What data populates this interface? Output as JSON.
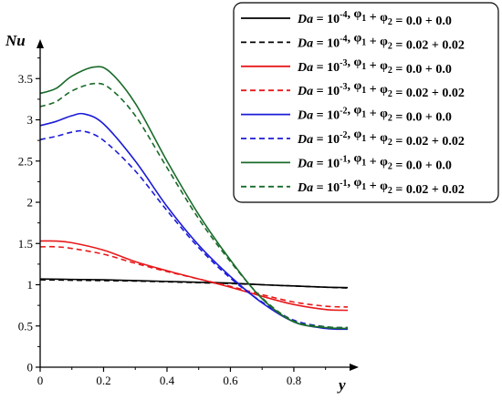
{
  "chart_data": {
    "type": "line",
    "title": "",
    "xlabel": "y",
    "ylabel": "Nu",
    "xlim": [
      0,
      0.97
    ],
    "ylim": [
      0,
      4
    ],
    "xticks": [
      "0",
      "0.2",
      "0.4",
      "0.6",
      "0.8"
    ],
    "xtick_values": [
      0,
      0.2,
      0.4,
      0.6,
      0.8
    ],
    "yticks": [
      "0",
      "0.5",
      "1",
      "1.5",
      "2",
      "2.5",
      "3",
      "3.5"
    ],
    "ytick_values": [
      0,
      0.5,
      1,
      1.5,
      2,
      2.5,
      3,
      3.5
    ],
    "grid": false,
    "legend_position": "top-right",
    "series": [
      {
        "name": "Da = 10^-4, φ1 + φ2 = 0.0 + 0.0",
        "legend": {
          "da_label": "Da",
          "da_exp": "-4",
          "phi_values": "0.0 + 0.0"
        },
        "color": "#000000",
        "dash": "solid",
        "points": [
          [
            0,
            1.07
          ],
          [
            0.1,
            1.065
          ],
          [
            0.2,
            1.06
          ],
          [
            0.3,
            1.05
          ],
          [
            0.4,
            1.04
          ],
          [
            0.5,
            1.03
          ],
          [
            0.6,
            1.02
          ],
          [
            0.7,
            1.0
          ],
          [
            0.8,
            0.985
          ],
          [
            0.9,
            0.97
          ],
          [
            0.97,
            0.965
          ]
        ]
      },
      {
        "name": "Da = 10^-4, φ1 + φ2 = 0.02 + 0.02",
        "legend": {
          "da_label": "Da",
          "da_exp": "-4",
          "phi_values": "0.02 + 0.02"
        },
        "color": "#000000",
        "dash": "dashed",
        "points": [
          [
            0,
            1.06
          ],
          [
            0.1,
            1.055
          ],
          [
            0.2,
            1.05
          ],
          [
            0.3,
            1.045
          ],
          [
            0.4,
            1.035
          ],
          [
            0.5,
            1.025
          ],
          [
            0.6,
            1.015
          ],
          [
            0.7,
            1.0
          ],
          [
            0.8,
            0.985
          ],
          [
            0.9,
            0.97
          ],
          [
            0.97,
            0.96
          ]
        ]
      },
      {
        "name": "Da = 10^-3, φ1 + φ2 = 0.0 + 0.0",
        "legend": {
          "da_label": "Da",
          "da_exp": "-3",
          "phi_values": "0.0 + 0.0"
        },
        "color": "#e8191b",
        "dash": "solid",
        "points": [
          [
            0,
            1.53
          ],
          [
            0.05,
            1.53
          ],
          [
            0.1,
            1.51
          ],
          [
            0.2,
            1.42
          ],
          [
            0.3,
            1.28
          ],
          [
            0.4,
            1.17
          ],
          [
            0.5,
            1.07
          ],
          [
            0.6,
            0.97
          ],
          [
            0.7,
            0.86
          ],
          [
            0.8,
            0.76
          ],
          [
            0.9,
            0.7
          ],
          [
            0.97,
            0.69
          ]
        ]
      },
      {
        "name": "Da = 10^-3, φ1 + φ2 = 0.02 + 0.02",
        "legend": {
          "da_label": "Da",
          "da_exp": "-3",
          "phi_values": "0.02 + 0.02"
        },
        "color": "#e8191b",
        "dash": "dashed",
        "points": [
          [
            0,
            1.46
          ],
          [
            0.05,
            1.46
          ],
          [
            0.1,
            1.44
          ],
          [
            0.2,
            1.37
          ],
          [
            0.3,
            1.26
          ],
          [
            0.4,
            1.16
          ],
          [
            0.5,
            1.07
          ],
          [
            0.6,
            0.98
          ],
          [
            0.7,
            0.88
          ],
          [
            0.8,
            0.79
          ],
          [
            0.9,
            0.74
          ],
          [
            0.97,
            0.73
          ]
        ]
      },
      {
        "name": "Da = 10^-2, φ1 + φ2 = 0.0 + 0.0",
        "legend": {
          "da_label": "Da",
          "da_exp": "-2",
          "phi_values": "0.0 + 0.0"
        },
        "color": "#1b1bd8",
        "dash": "solid",
        "points": [
          [
            0,
            2.93
          ],
          [
            0.05,
            2.98
          ],
          [
            0.1,
            3.05
          ],
          [
            0.14,
            3.07
          ],
          [
            0.2,
            2.95
          ],
          [
            0.3,
            2.5
          ],
          [
            0.4,
            1.95
          ],
          [
            0.5,
            1.48
          ],
          [
            0.6,
            1.1
          ],
          [
            0.7,
            0.78
          ],
          [
            0.8,
            0.55
          ],
          [
            0.9,
            0.47
          ],
          [
            0.97,
            0.46
          ]
        ]
      },
      {
        "name": "Da = 10^-2, φ1 + φ2 = 0.02 + 0.02",
        "legend": {
          "da_label": "Da",
          "da_exp": "-2",
          "phi_values": "0.02 + 0.02"
        },
        "color": "#1b1bd8",
        "dash": "dashed",
        "points": [
          [
            0,
            2.76
          ],
          [
            0.05,
            2.8
          ],
          [
            0.1,
            2.85
          ],
          [
            0.14,
            2.86
          ],
          [
            0.2,
            2.75
          ],
          [
            0.3,
            2.38
          ],
          [
            0.4,
            1.9
          ],
          [
            0.5,
            1.45
          ],
          [
            0.6,
            1.08
          ],
          [
            0.7,
            0.79
          ],
          [
            0.8,
            0.57
          ],
          [
            0.9,
            0.49
          ],
          [
            0.97,
            0.48
          ]
        ]
      },
      {
        "name": "Da = 10^-1, φ1 + φ2 = 0.0 + 0.0",
        "legend": {
          "da_label": "Da",
          "da_exp": "-1",
          "phi_values": "0.0 + 0.0"
        },
        "color": "#1a6b2a",
        "dash": "solid",
        "points": [
          [
            0,
            3.32
          ],
          [
            0.05,
            3.38
          ],
          [
            0.1,
            3.53
          ],
          [
            0.17,
            3.64
          ],
          [
            0.22,
            3.58
          ],
          [
            0.3,
            3.2
          ],
          [
            0.4,
            2.5
          ],
          [
            0.5,
            1.85
          ],
          [
            0.6,
            1.3
          ],
          [
            0.7,
            0.83
          ],
          [
            0.8,
            0.55
          ],
          [
            0.9,
            0.48
          ],
          [
            0.97,
            0.47
          ]
        ]
      },
      {
        "name": "Da = 10^-1, φ1 + φ2 = 0.02 + 0.02",
        "legend": {
          "da_label": "Da",
          "da_exp": "-1",
          "phi_values": "0.02 + 0.02"
        },
        "color": "#1a6b2a",
        "dash": "dashed",
        "points": [
          [
            0,
            3.16
          ],
          [
            0.05,
            3.22
          ],
          [
            0.1,
            3.35
          ],
          [
            0.17,
            3.44
          ],
          [
            0.22,
            3.38
          ],
          [
            0.3,
            3.05
          ],
          [
            0.4,
            2.42
          ],
          [
            0.5,
            1.8
          ],
          [
            0.6,
            1.28
          ],
          [
            0.7,
            0.84
          ],
          [
            0.8,
            0.56
          ],
          [
            0.9,
            0.49
          ],
          [
            0.97,
            0.48
          ]
        ]
      }
    ]
  }
}
